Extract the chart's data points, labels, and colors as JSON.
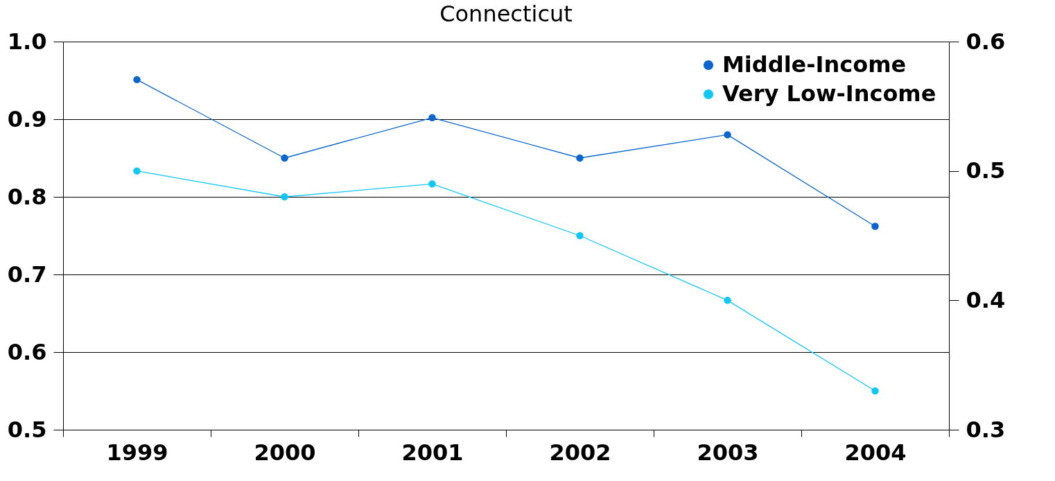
{
  "chart_data": {
    "type": "line",
    "title": "Connecticut",
    "categories": [
      "1999",
      "2000",
      "2001",
      "2002",
      "2003",
      "2004"
    ],
    "series": [
      {
        "name": "Middle-Income",
        "color": "#0a66cc",
        "values": [
          0.951,
          0.85,
          0.902,
          0.85,
          0.88,
          0.762
        ]
      },
      {
        "name": "Very Low-Income",
        "color": "#11c8f5",
        "axis": "y2",
        "values": [
          0.5,
          0.48,
          0.49,
          0.45,
          0.4,
          0.33
        ]
      }
    ],
    "ylim": [
      0.5,
      1.0
    ],
    "yticks": [
      0.5,
      0.6,
      0.7,
      0.8,
      0.9,
      {
        "value": 1,
        "label": "1.0"
      }
    ],
    "y2lim": [
      0.3,
      0.6
    ],
    "y2ticks": [
      0.3,
      0.4,
      0.5,
      0.6
    ],
    "grid": "y",
    "legend": "top right",
    "marker": "circle",
    "line_style": "solid"
  }
}
